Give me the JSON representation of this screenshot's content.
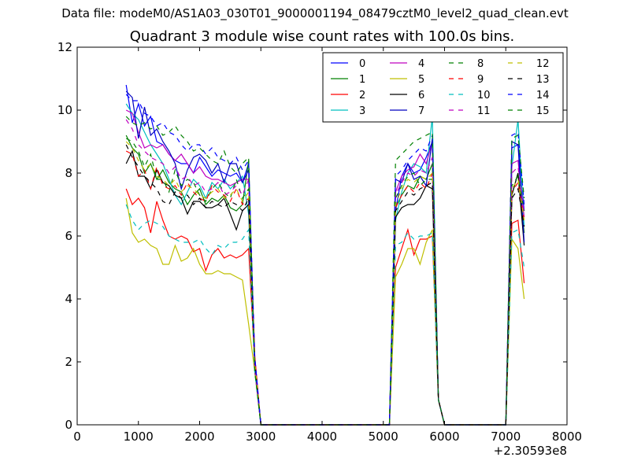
{
  "figure": {
    "suptitle": "Data file: modeM0/AS1A03_030T01_9000001194_08479cztM0_level2_quad_clean.evt",
    "title": "Quadrant 3 module wise count rates with 100.0s bins."
  },
  "chart_data": {
    "type": "line",
    "title": "Quadrant 3 module wise count rates with 100.0s bins.",
    "xlabel": "",
    "ylabel": "",
    "x_offset_label": "+2.30593e8",
    "xlim": [
      0,
      8000
    ],
    "ylim": [
      0,
      12
    ],
    "xticks": [
      0,
      1000,
      2000,
      3000,
      4000,
      5000,
      6000,
      7000,
      8000
    ],
    "yticks": [
      0,
      2,
      4,
      6,
      8,
      10,
      12
    ],
    "grid": false,
    "legend_position": "top-right",
    "legend_columns": 4,
    "segments": [
      {
        "x_start": 800,
        "x_end": 2800,
        "step": 100
      },
      {
        "x_start": 5200,
        "x_end": 5800,
        "step": 100
      },
      {
        "x_start": 7100,
        "x_end": 7300,
        "step": 100
      }
    ],
    "drop_segments": [
      {
        "x": [
          2800,
          2900,
          3000,
          5000
        ],
        "y": [
          null,
          2,
          0,
          0
        ]
      },
      {
        "x": [
          5100,
          5200
        ],
        "y": [
          0,
          null
        ]
      },
      {
        "x": [
          5800,
          5900,
          6000,
          7000
        ],
        "y": [
          null,
          0.8,
          0,
          0
        ]
      },
      {
        "x": [
          7000,
          7100
        ],
        "y": [
          0,
          null
        ]
      }
    ],
    "series": [
      {
        "name": "0",
        "color": "#0000ff",
        "dash": "solid",
        "seg1": [
          10.8,
          9.6,
          10.2,
          9.5,
          9.8,
          9.0,
          8.9,
          8.6,
          8.4,
          8.3,
          8.3,
          8.0,
          8.5,
          8.2,
          7.9,
          8.1,
          8.0,
          7.9,
          8.0,
          7.7,
          8.3
        ],
        "seg2": [
          6.8,
          7.9,
          8.3,
          8.0,
          8.1,
          8.5,
          9.0
        ],
        "seg3": [
          8.8,
          8.9,
          6.8
        ]
      },
      {
        "name": "1",
        "color": "#008000",
        "dash": "solid",
        "seg1": [
          9.2,
          8.8,
          8.6,
          8.0,
          8.3,
          7.8,
          8.1,
          7.7,
          7.5,
          7.4,
          7.0,
          7.3,
          7.5,
          7.0,
          7.2,
          7.1,
          7.3,
          6.9,
          6.8,
          7.0,
          8.4
        ],
        "seg2": [
          6.9,
          7.3,
          7.6,
          7.5,
          7.9,
          7.8,
          8.3
        ],
        "seg3": [
          7.3,
          8.0,
          6.1
        ]
      },
      {
        "name": "2",
        "color": "#ff0000",
        "dash": "solid",
        "seg1": [
          7.5,
          7.0,
          7.2,
          6.9,
          6.1,
          7.1,
          6.5,
          6.0,
          5.9,
          6.0,
          5.9,
          5.5,
          5.6,
          4.9,
          5.4,
          5.6,
          5.3,
          5.4,
          5.3,
          5.4,
          5.6
        ],
        "seg2": [
          5.0,
          5.6,
          6.2,
          5.4,
          5.9,
          5.9,
          6.0
        ],
        "seg3": [
          6.4,
          6.5,
          4.5
        ]
      },
      {
        "name": "3",
        "color": "#00bfbf",
        "dash": "solid",
        "seg1": [
          10.2,
          9.9,
          9.7,
          9.3,
          8.9,
          8.6,
          8.3,
          7.8,
          7.3,
          7.0,
          7.4,
          7.8,
          7.6,
          7.2,
          7.7,
          7.5,
          7.8,
          7.5,
          7.7,
          7.9,
          6.7
        ],
        "seg2": [
          6.5,
          7.4,
          8.0,
          8.3,
          8.2,
          8.0,
          9.8
        ],
        "seg3": [
          8.2,
          9.7,
          6.3
        ]
      },
      {
        "name": "4",
        "color": "#bf00bf",
        "dash": "solid",
        "seg1": [
          10.0,
          9.9,
          9.3,
          8.8,
          8.9,
          8.8,
          8.9,
          8.6,
          8.4,
          8.6,
          8.3,
          8.0,
          8.2,
          7.9,
          7.8,
          7.8,
          7.7,
          7.6,
          7.7,
          7.8,
          7.8
        ],
        "seg2": [
          7.4,
          7.9,
          8.1,
          8.2,
          8.6,
          8.3,
          9.0
        ],
        "seg3": [
          8.3,
          8.4,
          6.6
        ]
      },
      {
        "name": "5",
        "color": "#bfbf00",
        "dash": "solid",
        "seg1": [
          7.2,
          6.1,
          5.8,
          5.9,
          5.7,
          5.6,
          5.1,
          5.1,
          5.7,
          5.2,
          5.3,
          5.6,
          5.1,
          4.8,
          4.8,
          4.9,
          4.8,
          4.8,
          4.7,
          4.6,
          3.2
        ],
        "seg2": [
          4.7,
          5.1,
          5.6,
          5.6,
          5.1,
          5.8,
          6.2
        ],
        "seg3": [
          5.9,
          5.6,
          4.0
        ]
      },
      {
        "name": "6",
        "color": "#000000",
        "dash": "solid",
        "seg1": [
          8.3,
          8.7,
          7.9,
          7.9,
          7.5,
          8.1,
          7.7,
          7.6,
          7.3,
          7.2,
          6.7,
          7.1,
          7.1,
          6.9,
          6.9,
          7.0,
          7.2,
          6.7,
          6.2,
          6.8,
          7.0
        ],
        "seg2": [
          6.6,
          6.9,
          7.0,
          7.0,
          7.2,
          7.6,
          7.5
        ],
        "seg3": [
          7.3,
          8.0,
          5.7
        ]
      },
      {
        "name": "7",
        "color": "#0000bf",
        "dash": "solid",
        "seg1": [
          10.6,
          10.4,
          9.1,
          10.1,
          9.2,
          9.4,
          9.0,
          8.7,
          8.3,
          7.5,
          8.1,
          8.5,
          8.6,
          8.4,
          8.0,
          8.3,
          7.7,
          8.3,
          8.3,
          7.7,
          8.1
        ],
        "seg2": [
          7.8,
          7.7,
          8.3,
          7.8,
          7.9,
          7.6,
          9.1
        ],
        "seg3": [
          9.0,
          8.9,
          5.8
        ]
      },
      {
        "name": "8",
        "color": "#008000",
        "dash": "dashed",
        "seg1": [
          9.1,
          9.0,
          8.7,
          8.2,
          8.6,
          7.8,
          7.8,
          7.4,
          8.1,
          7.6,
          7.8,
          7.7,
          7.3,
          7.1,
          7.5,
          7.7,
          7.4,
          7.2,
          7.8,
          7.2,
          7.5
        ],
        "seg2": [
          7.2,
          7.6,
          7.9,
          8.0,
          7.6,
          7.8,
          7.8
        ],
        "seg3": [
          7.6,
          7.9,
          6.8
        ]
      },
      {
        "name": "9",
        "color": "#ff0000",
        "dash": "dashed",
        "seg1": [
          8.7,
          8.6,
          7.9,
          8.1,
          7.5,
          8.2,
          7.6,
          7.5,
          7.6,
          7.3,
          7.7,
          7.4,
          7.2,
          7.1,
          7.6,
          7.4,
          7.3,
          7.1,
          7.5,
          7.0,
          7.2
        ],
        "seg2": [
          6.9,
          7.3,
          7.6,
          7.4,
          7.7,
          7.5,
          8.0
        ],
        "seg3": [
          7.4,
          7.7,
          6.5
        ]
      },
      {
        "name": "10",
        "color": "#00bfbf",
        "dash": "dashed",
        "seg1": [
          7.0,
          6.5,
          6.2,
          6.4,
          6.5,
          6.4,
          6.3,
          6.0,
          5.9,
          5.8,
          5.8,
          5.8,
          5.9,
          5.6,
          5.4,
          5.7,
          5.6,
          5.8,
          5.8,
          5.9,
          6.2
        ],
        "seg2": [
          5.7,
          5.8,
          6.1,
          5.9,
          6.0,
          6.0,
          6.1
        ],
        "seg3": [
          6.1,
          6.2,
          5.0
        ]
      },
      {
        "name": "11",
        "color": "#bf00bf",
        "dash": "dashed",
        "seg1": [
          9.7,
          9.4,
          8.9,
          8.7,
          8.5,
          8.4,
          8.3,
          8.0,
          8.2,
          7.8,
          7.9,
          7.6,
          7.7,
          7.4,
          7.5,
          7.7,
          7.3,
          7.4,
          7.6,
          7.3,
          7.8
        ],
        "seg2": [
          7.3,
          7.7,
          8.0,
          7.9,
          8.1,
          8.0,
          8.5
        ],
        "seg3": [
          8.0,
          8.2,
          6.7
        ]
      },
      {
        "name": "12",
        "color": "#bfbf00",
        "dash": "dashed",
        "seg1": [
          9.0,
          8.8,
          8.4,
          8.1,
          8.3,
          7.9,
          7.8,
          7.6,
          7.8,
          7.4,
          7.6,
          7.5,
          7.3,
          7.2,
          7.4,
          7.5,
          7.2,
          7.3,
          7.5,
          7.1,
          7.4
        ],
        "seg2": [
          7.0,
          7.5,
          7.8,
          7.7,
          7.9,
          7.8,
          8.0
        ],
        "seg3": [
          7.5,
          7.8,
          6.5
        ]
      },
      {
        "name": "13",
        "color": "#000000",
        "dash": "dashed",
        "seg1": [
          8.9,
          8.5,
          8.2,
          7.9,
          7.7,
          7.5,
          7.1,
          7.0,
          7.4,
          7.2,
          7.3,
          7.0,
          7.2,
          6.9,
          7.1,
          7.0,
          6.9,
          7.1,
          7.0,
          6.8,
          7.2
        ],
        "seg2": [
          6.8,
          7.1,
          7.4,
          7.3,
          7.5,
          7.6,
          7.7
        ],
        "seg3": [
          7.2,
          7.5,
          6.3
        ]
      },
      {
        "name": "14",
        "color": "#0000ff",
        "dash": "dashed",
        "seg1": [
          10.5,
          10.3,
          10.3,
          9.9,
          9.8,
          9.5,
          9.6,
          9.3,
          9.2,
          8.9,
          8.7,
          8.9,
          8.9,
          8.6,
          8.8,
          8.5,
          8.4,
          8.3,
          8.5,
          8.1,
          8.4
        ],
        "seg2": [
          7.9,
          8.1,
          8.4,
          8.6,
          8.8,
          8.7,
          9.2
        ],
        "seg3": [
          9.2,
          9.3,
          7.0
        ]
      },
      {
        "name": "15",
        "color": "#008000",
        "dash": "dashed",
        "seg1": [
          9.8,
          9.6,
          9.5,
          9.6,
          9.4,
          9.5,
          9.2,
          9.3,
          9.5,
          9.2,
          9.0,
          8.7,
          8.8,
          8.6,
          8.4,
          8.3,
          8.7,
          8.2,
          8.0,
          8.3,
          8.5
        ],
        "seg2": [
          8.4,
          8.6,
          8.8,
          9.0,
          9.1,
          9.2,
          9.3
        ],
        "seg3": [
          9.1,
          9.2,
          7.2
        ]
      }
    ]
  }
}
